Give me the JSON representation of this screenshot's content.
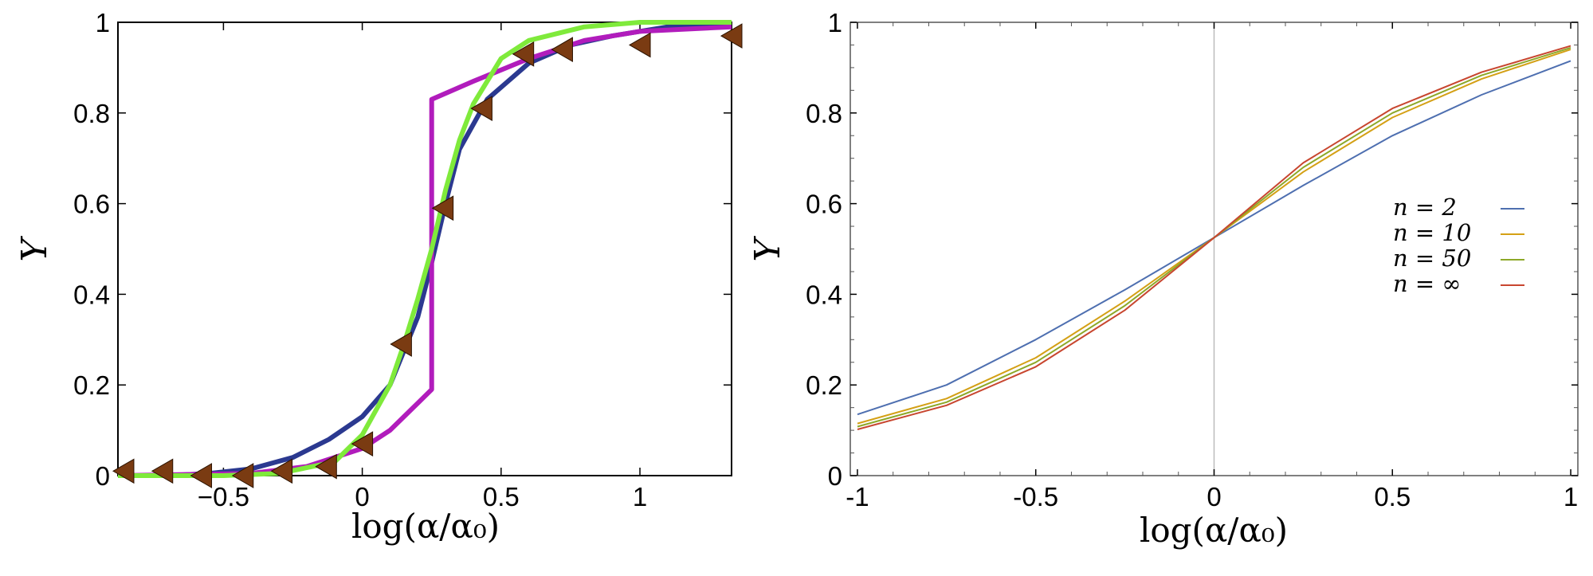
{
  "chart_data": [
    {
      "type": "line",
      "title": "",
      "xlabel": "log(α/α₀)",
      "ylabel": "Y",
      "xlim": [
        -0.88,
        1.33
      ],
      "ylim": [
        0,
        1
      ],
      "xticks": [
        -0.5,
        0,
        0.5,
        1
      ],
      "xtick_labels": [
        "−0.5",
        "0",
        "0.5",
        "1"
      ],
      "yticks": [
        0,
        0.2,
        0.4,
        0.6,
        0.8,
        1
      ],
      "ytick_labels": [
        "0",
        "0.2",
        "0.4",
        "0.6",
        "0.8",
        "1"
      ],
      "grid": false,
      "series": [
        {
          "color": "#2b3990",
          "style": "line",
          "x": [
            -0.88,
            -0.7,
            -0.55,
            -0.4,
            -0.25,
            -0.12,
            0.0,
            0.1,
            0.2,
            0.25,
            0.3,
            0.35,
            0.45,
            0.6,
            0.75,
            0.9,
            1.1,
            1.33
          ],
          "y": [
            0.0,
            0.0,
            0.005,
            0.015,
            0.04,
            0.08,
            0.13,
            0.2,
            0.35,
            0.47,
            0.6,
            0.72,
            0.83,
            0.91,
            0.95,
            0.97,
            0.99,
            1.0
          ]
        },
        {
          "color": "#b11cbc",
          "style": "line",
          "x": [
            -0.88,
            -0.4,
            -0.2,
            0.0,
            0.1,
            0.2,
            0.25,
            0.25,
            0.4,
            0.6,
            0.8,
            1.0,
            1.33
          ],
          "y": [
            0.0,
            0.005,
            0.02,
            0.06,
            0.1,
            0.16,
            0.19,
            0.83,
            0.87,
            0.92,
            0.96,
            0.98,
            0.99
          ]
        },
        {
          "color": "#7fea3b",
          "style": "line",
          "x": [
            -0.88,
            -0.5,
            -0.3,
            -0.1,
            0.0,
            0.1,
            0.15,
            0.2,
            0.25,
            0.3,
            0.35,
            0.4,
            0.5,
            0.6,
            0.8,
            1.0,
            1.33
          ],
          "y": [
            0.0,
            0.0,
            0.005,
            0.03,
            0.09,
            0.2,
            0.29,
            0.39,
            0.5,
            0.63,
            0.74,
            0.82,
            0.92,
            0.96,
            0.99,
            1.0,
            1.0
          ]
        },
        {
          "color": "#7a3b12",
          "style": "markers",
          "marker": "left-triangle",
          "x": [
            -0.86,
            -0.72,
            -0.58,
            -0.43,
            -0.29,
            -0.13,
            0.0,
            0.14,
            0.29,
            0.43,
            0.58,
            0.72,
            1.0,
            1.33
          ],
          "y": [
            0.01,
            0.01,
            0.0,
            0.0,
            0.01,
            0.02,
            0.07,
            0.29,
            0.59,
            0.81,
            0.93,
            0.94,
            0.95,
            0.97
          ]
        }
      ]
    },
    {
      "type": "line",
      "title": "",
      "xlabel": "log(α/α₀)",
      "ylabel": "Y",
      "xlim": [
        -1.02,
        1.02
      ],
      "ylim": [
        0,
        1
      ],
      "xticks": [
        -1,
        -0.5,
        0,
        0.5,
        1
      ],
      "xtick_labels": [
        "-1",
        "-0.5",
        "0",
        "0.5",
        "1"
      ],
      "yticks": [
        0,
        0.2,
        0.4,
        0.6,
        0.8,
        1
      ],
      "ytick_labels": [
        "0",
        "0.2",
        "0.4",
        "0.6",
        "0.8",
        "1"
      ],
      "grid": false,
      "vline_x": 0,
      "legend_position": "right",
      "legend": [
        {
          "label": "n = 2",
          "color": "#4e6fb0"
        },
        {
          "label": "n = 10",
          "color": "#d4a015"
        },
        {
          "label": "n = 50",
          "color": "#8da828"
        },
        {
          "label": "n = ∞",
          "color": "#c8462f"
        }
      ],
      "series": [
        {
          "label": "n = 2",
          "color": "#4e6fb0",
          "x": [
            -1,
            -0.75,
            -0.5,
            -0.25,
            0,
            0.25,
            0.5,
            0.75,
            1
          ],
          "y": [
            0.135,
            0.2,
            0.3,
            0.41,
            0.525,
            0.64,
            0.75,
            0.84,
            0.915
          ]
        },
        {
          "label": "n = 10",
          "color": "#d4a015",
          "x": [
            -1,
            -0.75,
            -0.5,
            -0.25,
            0,
            0.25,
            0.5,
            0.75,
            1
          ],
          "y": [
            0.115,
            0.17,
            0.26,
            0.385,
            0.525,
            0.67,
            0.79,
            0.875,
            0.94
          ]
        },
        {
          "label": "n = 50",
          "color": "#8da828",
          "x": [
            -1,
            -0.75,
            -0.5,
            -0.25,
            0,
            0.25,
            0.5,
            0.75,
            1
          ],
          "y": [
            0.108,
            0.162,
            0.25,
            0.375,
            0.525,
            0.68,
            0.8,
            0.883,
            0.944
          ]
        },
        {
          "label": "n = ∞",
          "color": "#c8462f",
          "x": [
            -1,
            -0.75,
            -0.5,
            -0.25,
            0,
            0.25,
            0.5,
            0.75,
            1
          ],
          "y": [
            0.102,
            0.155,
            0.24,
            0.365,
            0.525,
            0.69,
            0.81,
            0.89,
            0.948
          ]
        }
      ]
    }
  ]
}
